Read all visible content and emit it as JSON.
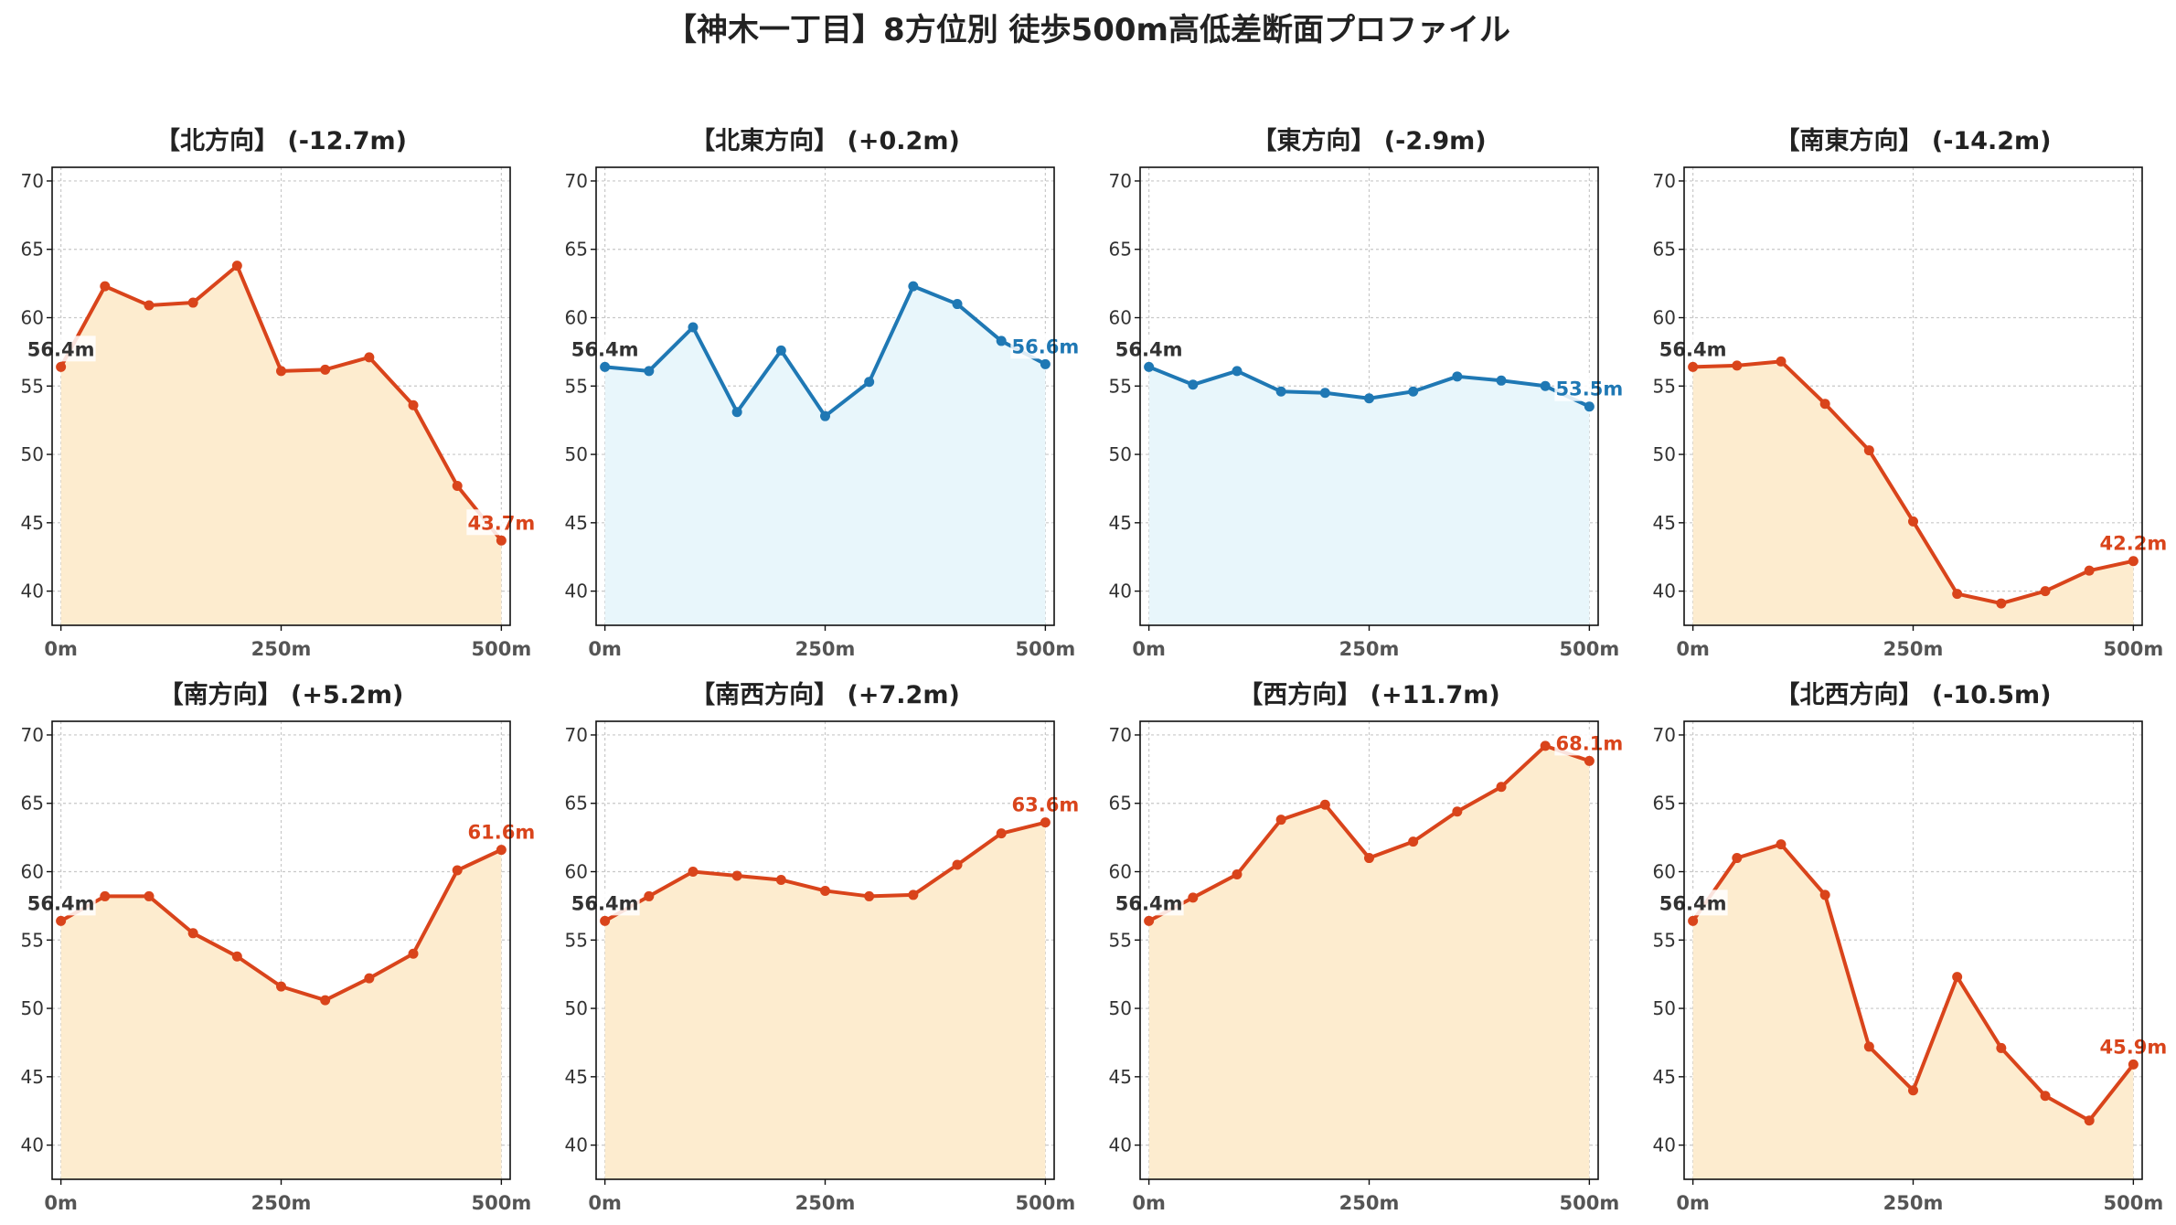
{
  "figure": {
    "title": "【神木一丁目】8方位別 徒歩500m高低差断面プロファイル"
  },
  "colors": {
    "down_line": "#d9441b",
    "down_fill": "#fdeccf",
    "flat_line": "#1f78b4",
    "flat_fill": "#e8f6fb",
    "grid": "#c8c8c8",
    "axis": "#111111"
  },
  "chart_data": [
    {
      "type": "area",
      "title": "【北方向】 (-12.7m)",
      "x": [
        0,
        50,
        100,
        150,
        200,
        250,
        300,
        350,
        400,
        450,
        500
      ],
      "values": [
        56.4,
        62.3,
        60.9,
        61.1,
        63.8,
        56.1,
        56.2,
        57.1,
        53.6,
        47.7,
        43.7
      ],
      "color_scheme": "orange",
      "start_label": "56.4m",
      "end_label": "43.7m",
      "xticks": [
        0,
        250,
        500
      ],
      "xtick_labels": [
        "0m",
        "250m",
        "500m"
      ],
      "yticks": [
        40,
        45,
        50,
        55,
        60,
        65,
        70
      ],
      "ylim": [
        37.5,
        71
      ],
      "xlim": [
        -10,
        510
      ],
      "grid": true
    },
    {
      "type": "area",
      "title": "【北東方向】 (+0.2m)",
      "x": [
        0,
        50,
        100,
        150,
        200,
        250,
        300,
        350,
        400,
        450,
        500
      ],
      "values": [
        56.4,
        56.1,
        59.3,
        53.1,
        57.6,
        52.8,
        55.3,
        62.3,
        61.0,
        58.3,
        56.6
      ],
      "color_scheme": "blue",
      "start_label": "56.4m",
      "end_label": "56.6m",
      "xticks": [
        0,
        250,
        500
      ],
      "xtick_labels": [
        "0m",
        "250m",
        "500m"
      ],
      "yticks": [
        40,
        45,
        50,
        55,
        60,
        65,
        70
      ],
      "ylim": [
        37.5,
        71
      ],
      "xlim": [
        -10,
        510
      ],
      "grid": true
    },
    {
      "type": "area",
      "title": "【東方向】 (-2.9m)",
      "x": [
        0,
        50,
        100,
        150,
        200,
        250,
        300,
        350,
        400,
        450,
        500
      ],
      "values": [
        56.4,
        55.1,
        56.1,
        54.6,
        54.5,
        54.1,
        54.6,
        55.7,
        55.4,
        55.0,
        53.5
      ],
      "color_scheme": "blue",
      "start_label": "56.4m",
      "end_label": "53.5m",
      "xticks": [
        0,
        250,
        500
      ],
      "xtick_labels": [
        "0m",
        "250m",
        "500m"
      ],
      "yticks": [
        40,
        45,
        50,
        55,
        60,
        65,
        70
      ],
      "ylim": [
        37.5,
        71
      ],
      "xlim": [
        -10,
        510
      ],
      "grid": true
    },
    {
      "type": "area",
      "title": "【南東方向】 (-14.2m)",
      "x": [
        0,
        50,
        100,
        150,
        200,
        250,
        300,
        350,
        400,
        450,
        500
      ],
      "values": [
        56.4,
        56.5,
        56.8,
        53.7,
        50.3,
        45.1,
        39.8,
        39.1,
        40.0,
        41.5,
        42.2
      ],
      "color_scheme": "orange",
      "start_label": "56.4m",
      "end_label": "42.2m",
      "xticks": [
        0,
        250,
        500
      ],
      "xtick_labels": [
        "0m",
        "250m",
        "500m"
      ],
      "yticks": [
        40,
        45,
        50,
        55,
        60,
        65,
        70
      ],
      "ylim": [
        37.5,
        71
      ],
      "xlim": [
        -10,
        510
      ],
      "grid": true
    },
    {
      "type": "area",
      "title": "【南方向】 (+5.2m)",
      "x": [
        0,
        50,
        100,
        150,
        200,
        250,
        300,
        350,
        400,
        450,
        500
      ],
      "values": [
        56.4,
        58.2,
        58.2,
        55.5,
        53.8,
        51.6,
        50.6,
        52.2,
        54.0,
        60.1,
        61.6
      ],
      "color_scheme": "orange",
      "start_label": "56.4m",
      "end_label": "61.6m",
      "xticks": [
        0,
        250,
        500
      ],
      "xtick_labels": [
        "0m",
        "250m",
        "500m"
      ],
      "yticks": [
        40,
        45,
        50,
        55,
        60,
        65,
        70
      ],
      "ylim": [
        37.5,
        71
      ],
      "xlim": [
        -10,
        510
      ],
      "grid": true
    },
    {
      "type": "area",
      "title": "【南西方向】 (+7.2m)",
      "x": [
        0,
        50,
        100,
        150,
        200,
        250,
        300,
        350,
        400,
        450,
        500
      ],
      "values": [
        56.4,
        58.2,
        60.0,
        59.7,
        59.4,
        58.6,
        58.2,
        58.3,
        60.5,
        62.8,
        63.6
      ],
      "color_scheme": "orange",
      "start_label": "56.4m",
      "end_label": "63.6m",
      "xticks": [
        0,
        250,
        500
      ],
      "xtick_labels": [
        "0m",
        "250m",
        "500m"
      ],
      "yticks": [
        40,
        45,
        50,
        55,
        60,
        65,
        70
      ],
      "ylim": [
        37.5,
        71
      ],
      "xlim": [
        -10,
        510
      ],
      "grid": true
    },
    {
      "type": "area",
      "title": "【西方向】 (+11.7m)",
      "x": [
        0,
        50,
        100,
        150,
        200,
        250,
        300,
        350,
        400,
        450,
        500
      ],
      "values": [
        56.4,
        58.1,
        59.8,
        63.8,
        64.9,
        61.0,
        62.2,
        64.4,
        66.2,
        69.2,
        68.1
      ],
      "color_scheme": "orange",
      "start_label": "56.4m",
      "end_label": "68.1m",
      "xticks": [
        0,
        250,
        500
      ],
      "xtick_labels": [
        "0m",
        "250m",
        "500m"
      ],
      "yticks": [
        40,
        45,
        50,
        55,
        60,
        65,
        70
      ],
      "ylim": [
        37.5,
        71
      ],
      "xlim": [
        -10,
        510
      ],
      "grid": true
    },
    {
      "type": "area",
      "title": "【北西方向】 (-10.5m)",
      "x": [
        0,
        50,
        100,
        150,
        200,
        250,
        300,
        350,
        400,
        450,
        500
      ],
      "values": [
        56.4,
        61.0,
        62.0,
        58.3,
        47.2,
        44.0,
        52.3,
        47.1,
        43.6,
        41.8,
        45.9
      ],
      "color_scheme": "orange",
      "start_label": "56.4m",
      "end_label": "45.9m",
      "xticks": [
        0,
        250,
        500
      ],
      "xtick_labels": [
        "0m",
        "250m",
        "500m"
      ],
      "yticks": [
        40,
        45,
        50,
        55,
        60,
        65,
        70
      ],
      "ylim": [
        37.5,
        71
      ],
      "xlim": [
        -10,
        510
      ],
      "grid": true
    }
  ]
}
